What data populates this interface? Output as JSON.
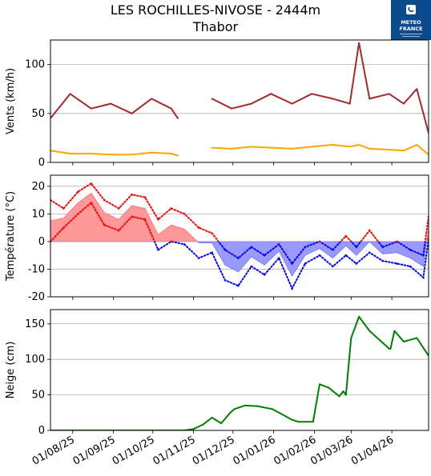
{
  "header": {
    "title_line1": "LES ROCHILLES-NIVOSE - 2444m",
    "title_line2": "Thabor",
    "logo_text1": "METEO",
    "logo_text2": "FRANCE"
  },
  "colors": {
    "wind_gust": "#a52a2a",
    "wind_mean": "#ffa500",
    "temp_max": "#ff0000",
    "temp_min": "#0000ff",
    "temp_pos_fill": "#ff9999",
    "temp_neg_fill": "#9999ff",
    "snow": "#008000",
    "grid": "#b0b0b0",
    "logo_bg": "#0b4a8c"
  },
  "chart_data": [
    {
      "type": "line",
      "ylabel": "Vents (km/h)",
      "ylim": [
        0,
        125
      ],
      "yticks": [
        0,
        50,
        100
      ],
      "grid": true,
      "x_dates": [
        "2025-07-15",
        "2025-07-30",
        "2025-08-15",
        "2025-08-30",
        "2025-09-15",
        "2025-09-30",
        "2025-10-15",
        "2025-10-20",
        "2025-11-03",
        "2025-11-15",
        "2025-11-30",
        "2025-12-15",
        "2025-12-30",
        "2026-01-15",
        "2026-01-30",
        "2026-02-15",
        "2026-02-28",
        "2026-03-07",
        "2026-03-15",
        "2026-03-30",
        "2026-04-10",
        "2026-04-20",
        "2026-04-29"
      ],
      "series": [
        {
          "role": "gust",
          "values": [
            45,
            70,
            55,
            60,
            50,
            65,
            55,
            45,
            null,
            65,
            55,
            60,
            70,
            60,
            70,
            65,
            60,
            122,
            65,
            70,
            60,
            75,
            30
          ]
        },
        {
          "role": "mean",
          "values": [
            12,
            9,
            9,
            8,
            8,
            10,
            9,
            7,
            null,
            15,
            14,
            16,
            15,
            14,
            16,
            18,
            16,
            18,
            14,
            13,
            12,
            18,
            8
          ]
        }
      ]
    },
    {
      "type": "area",
      "ylabel": "Température (°C)",
      "ylim": [
        -20,
        24
      ],
      "yticks": [
        -20,
        -10,
        0,
        10,
        20
      ],
      "grid": true,
      "x_dates": [
        "2025-07-15",
        "2025-07-25",
        "2025-08-05",
        "2025-08-15",
        "2025-08-25",
        "2025-09-05",
        "2025-09-15",
        "2025-09-25",
        "2025-10-05",
        "2025-10-15",
        "2025-10-25",
        "2025-11-05",
        "2025-11-15",
        "2025-11-25",
        "2025-12-05",
        "2025-12-15",
        "2025-12-25",
        "2026-01-05",
        "2026-01-15",
        "2026-01-25",
        "2026-02-05",
        "2026-02-15",
        "2026-02-25",
        "2026-03-05",
        "2026-03-15",
        "2026-03-25",
        "2026-04-05",
        "2026-04-15",
        "2026-04-25",
        "2026-04-29"
      ],
      "series": [
        {
          "role": "max",
          "values": [
            15,
            12,
            18,
            21,
            15,
            12,
            17,
            16,
            8,
            12,
            10,
            5,
            3,
            -3,
            -6,
            -2,
            -5,
            -1,
            -8,
            -2,
            0,
            -3,
            2,
            -2,
            4,
            -2,
            0,
            -3,
            -5,
            9
          ]
        },
        {
          "role": "min",
          "values": [
            0,
            5,
            10,
            14,
            6,
            4,
            9,
            8,
            -3,
            0,
            -1,
            -6,
            -4,
            -14,
            -16,
            -9,
            -12,
            -6,
            -17,
            -8,
            -5,
            -9,
            -5,
            -8,
            -4,
            -7,
            -8,
            -9,
            -13,
            1
          ]
        }
      ]
    },
    {
      "type": "line",
      "ylabel": "Neige (cm)",
      "ylim": [
        0,
        170
      ],
      "yticks": [
        0,
        50,
        100,
        150
      ],
      "grid": true,
      "x_dates": [
        "2025-07-15",
        "2025-09-30",
        "2025-10-12",
        "2025-10-25",
        "2025-11-01",
        "2025-11-08",
        "2025-11-15",
        "2025-11-22",
        "2025-11-29",
        "2025-12-02",
        "2025-12-10",
        "2025-12-20",
        "2025-12-31",
        "2026-01-10",
        "2026-01-15",
        "2026-01-20",
        "2026-01-25",
        "2026-01-31",
        "2026-02-05",
        "2026-02-12",
        "2026-02-20",
        "2026-02-23",
        "2026-02-25",
        "2026-03-01",
        "2026-03-07",
        "2026-03-15",
        "2026-03-30",
        "2026-03-31",
        "2026-04-03",
        "2026-04-10",
        "2026-04-20",
        "2026-04-29"
      ],
      "series": [
        {
          "role": "depth",
          "values": [
            0,
            0,
            0,
            0,
            2,
            8,
            18,
            10,
            25,
            30,
            35,
            34,
            30,
            20,
            15,
            12,
            12,
            12,
            65,
            60,
            48,
            55,
            50,
            130,
            160,
            140,
            115,
            115,
            140,
            125,
            130,
            105
          ]
        }
      ]
    }
  ],
  "x_axis": {
    "tick_dates": [
      "2025-08-01",
      "2025-09-01",
      "2025-10-01",
      "2025-11-01",
      "2025-12-01",
      "2026-01-01",
      "2026-02-01",
      "2026-03-01",
      "2026-04-01"
    ],
    "tick_labels": [
      "01/08/25",
      "01/09/25",
      "01/10/25",
      "01/11/25",
      "01/12/25",
      "01/01/26",
      "01/02/26",
      "01/03/26",
      "01/04/26"
    ],
    "start": "2025-07-15",
    "end": "2026-04-29"
  }
}
